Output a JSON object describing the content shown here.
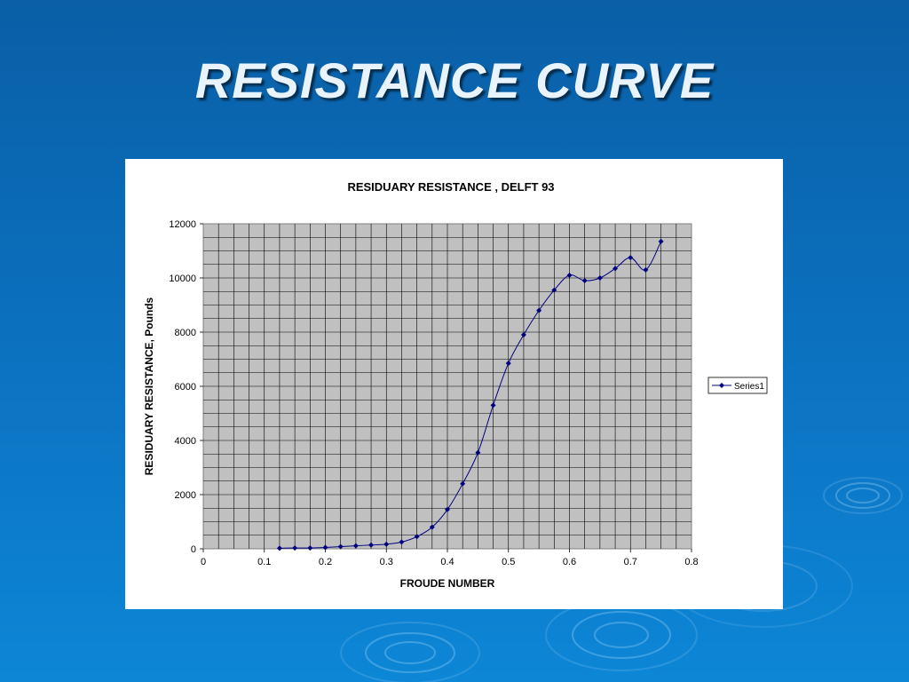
{
  "slide": {
    "title": "RESISTANCE CURVE",
    "background_color": "#0b6fbd",
    "title_color": "#e9f3fb"
  },
  "chart_data": {
    "type": "line",
    "title": "RESIDUARY RESISTANCE  , DELFT 93",
    "xlabel": "FROUDE NUMBER",
    "ylabel": "RESIDUARY RESISTANCE, Pounds",
    "xlim": [
      0,
      0.8
    ],
    "ylim": [
      0,
      12000
    ],
    "x_ticks": [
      "0",
      "0.1",
      "0.2",
      "0.3",
      "0.4",
      "0.5",
      "0.6",
      "0.7",
      "0.8"
    ],
    "y_ticks": [
      "0",
      "2000",
      "4000",
      "6000",
      "8000",
      "10000",
      "12000"
    ],
    "grid": true,
    "plot_background": "#c0c0c0",
    "series_color": "#00007f",
    "legend_position": "right",
    "series": [
      {
        "name": "Series1",
        "marker": "diamond",
        "x": [
          0.125,
          0.15,
          0.175,
          0.2,
          0.225,
          0.25,
          0.275,
          0.3,
          0.325,
          0.35,
          0.375,
          0.4,
          0.425,
          0.45,
          0.475,
          0.5,
          0.525,
          0.55,
          0.575,
          0.6,
          0.625,
          0.65,
          0.675,
          0.7,
          0.725,
          0.75
        ],
        "values": [
          20,
          30,
          30,
          50,
          80,
          110,
          140,
          170,
          250,
          450,
          800,
          1450,
          2400,
          3550,
          5300,
          6850,
          7900,
          8800,
          9550,
          10100,
          9900,
          10000,
          10350,
          10750,
          10300,
          11350
        ]
      }
    ]
  }
}
